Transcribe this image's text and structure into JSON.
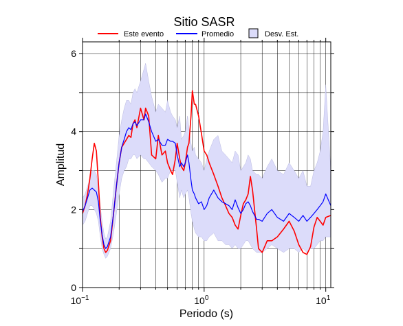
{
  "chart_data": {
    "type": "line",
    "title": "Sitio SASR",
    "xlabel": "Periodo (s)",
    "ylabel": "Amplitud",
    "x_scale": "log",
    "xlim": [
      0.1,
      11
    ],
    "ylim": [
      0,
      6.3
    ],
    "x_ticks": [
      {
        "value": 0.1,
        "base": "10",
        "exp": "−1"
      },
      {
        "value": 1,
        "base": "10",
        "exp": "0"
      },
      {
        "value": 10,
        "base": "10",
        "exp": "1"
      }
    ],
    "y_ticks": [
      0,
      2,
      4,
      6
    ],
    "grid": true,
    "legend_position": "top",
    "legend": {
      "event": "Este evento",
      "mean": "Promedio",
      "band": "Desv. Est."
    },
    "colors": {
      "event": "#ff0000",
      "mean": "#0000ff",
      "band_fill": "#dcdcfa",
      "band_stroke": "#9999cc"
    },
    "series": [
      {
        "name": "Este evento",
        "x": [
          0.1,
          0.105,
          0.11,
          0.115,
          0.12,
          0.125,
          0.13,
          0.135,
          0.14,
          0.145,
          0.15,
          0.155,
          0.16,
          0.17,
          0.18,
          0.19,
          0.2,
          0.21,
          0.22,
          0.23,
          0.24,
          0.25,
          0.26,
          0.27,
          0.28,
          0.3,
          0.32,
          0.33,
          0.35,
          0.37,
          0.4,
          0.42,
          0.45,
          0.48,
          0.5,
          0.53,
          0.55,
          0.58,
          0.6,
          0.63,
          0.65,
          0.68,
          0.7,
          0.73,
          0.75,
          0.78,
          0.8,
          0.83,
          0.85,
          0.9,
          0.95,
          1.0,
          1.05,
          1.1,
          1.2,
          1.3,
          1.4,
          1.5,
          1.6,
          1.7,
          1.8,
          1.9,
          2.0,
          2.1,
          2.2,
          2.3,
          2.4,
          2.5,
          2.7,
          2.8,
          3.0,
          3.3,
          3.6,
          4.0,
          4.5,
          5.0,
          5.5,
          6.0,
          6.5,
          7.0,
          7.5,
          8.0,
          8.5,
          9.0,
          9.5,
          10.0,
          11.0
        ],
        "y": [
          1.9,
          2.1,
          2.4,
          2.8,
          3.3,
          3.7,
          3.5,
          2.7,
          1.8,
          1.3,
          1.0,
          0.9,
          0.95,
          1.2,
          1.9,
          2.6,
          3.2,
          3.6,
          3.7,
          3.8,
          3.9,
          3.85,
          4.2,
          4.3,
          4.1,
          4.6,
          4.3,
          4.6,
          4.4,
          3.4,
          3.3,
          3.9,
          3.4,
          3.5,
          3.2,
          3.0,
          2.9,
          3.3,
          3.7,
          3.3,
          3.1,
          3.0,
          3.2,
          3.6,
          3.7,
          4.4,
          5.05,
          4.7,
          4.7,
          4.4,
          3.95,
          3.5,
          3.4,
          3.2,
          2.9,
          2.6,
          2.3,
          2.1,
          1.9,
          1.8,
          1.6,
          1.5,
          1.85,
          2.15,
          2.25,
          2.4,
          2.85,
          2.5,
          1.5,
          1.0,
          0.9,
          1.2,
          1.2,
          1.3,
          1.5,
          1.7,
          1.45,
          1.1,
          0.9,
          0.85,
          1.05,
          1.55,
          1.8,
          1.7,
          1.6,
          1.8,
          1.85
        ]
      },
      {
        "name": "Promedio",
        "x": [
          0.1,
          0.105,
          0.11,
          0.115,
          0.12,
          0.125,
          0.13,
          0.135,
          0.14,
          0.145,
          0.15,
          0.155,
          0.16,
          0.17,
          0.18,
          0.19,
          0.2,
          0.21,
          0.22,
          0.23,
          0.24,
          0.25,
          0.26,
          0.27,
          0.28,
          0.3,
          0.32,
          0.33,
          0.35,
          0.37,
          0.4,
          0.42,
          0.45,
          0.48,
          0.5,
          0.53,
          0.55,
          0.58,
          0.6,
          0.63,
          0.65,
          0.68,
          0.7,
          0.73,
          0.75,
          0.78,
          0.8,
          0.83,
          0.85,
          0.9,
          0.95,
          1.0,
          1.05,
          1.1,
          1.2,
          1.3,
          1.4,
          1.5,
          1.6,
          1.7,
          1.8,
          1.9,
          2.0,
          2.1,
          2.2,
          2.3,
          2.4,
          2.5,
          2.7,
          2.8,
          3.0,
          3.3,
          3.6,
          4.0,
          4.5,
          5.0,
          5.5,
          6.0,
          6.5,
          7.0,
          7.5,
          8.0,
          8.5,
          9.0,
          9.5,
          10.0,
          11.0
        ],
        "y": [
          1.95,
          2.1,
          2.3,
          2.5,
          2.55,
          2.5,
          2.45,
          2.2,
          1.7,
          1.35,
          1.1,
          1.0,
          1.05,
          1.3,
          1.9,
          2.6,
          3.2,
          3.6,
          3.8,
          4.0,
          4.1,
          4.05,
          4.2,
          4.25,
          4.15,
          4.3,
          4.3,
          4.45,
          4.25,
          4.0,
          3.75,
          3.8,
          3.65,
          3.65,
          3.8,
          3.75,
          3.75,
          3.7,
          3.4,
          3.1,
          3.2,
          3.1,
          3.2,
          3.4,
          3.2,
          2.75,
          2.5,
          2.4,
          2.3,
          2.15,
          2.2,
          2.0,
          2.1,
          2.3,
          2.5,
          2.3,
          2.2,
          2.15,
          2.1,
          2.0,
          2.25,
          2.05,
          1.9,
          2.0,
          2.15,
          2.2,
          2.1,
          1.95,
          1.75,
          1.75,
          1.7,
          1.9,
          2.0,
          1.8,
          1.7,
          1.9,
          1.8,
          1.7,
          1.85,
          1.7,
          1.8,
          1.9,
          2.0,
          2.1,
          2.2,
          2.4,
          2.1
        ]
      }
    ],
    "band": {
      "name": "Desv. Est.",
      "x": [
        0.1,
        0.105,
        0.11,
        0.115,
        0.12,
        0.125,
        0.13,
        0.135,
        0.14,
        0.145,
        0.15,
        0.155,
        0.16,
        0.17,
        0.18,
        0.19,
        0.2,
        0.21,
        0.22,
        0.23,
        0.24,
        0.25,
        0.26,
        0.27,
        0.28,
        0.3,
        0.32,
        0.33,
        0.35,
        0.37,
        0.4,
        0.42,
        0.45,
        0.48,
        0.5,
        0.53,
        0.55,
        0.58,
        0.6,
        0.63,
        0.65,
        0.68,
        0.7,
        0.73,
        0.75,
        0.78,
        0.8,
        0.83,
        0.85,
        0.9,
        0.95,
        1.0,
        1.05,
        1.1,
        1.2,
        1.3,
        1.4,
        1.5,
        1.6,
        1.7,
        1.8,
        1.9,
        2.0,
        2.1,
        2.2,
        2.3,
        2.4,
        2.5,
        2.7,
        2.8,
        3.0,
        3.3,
        3.6,
        4.0,
        4.5,
        5.0,
        5.5,
        6.0,
        6.5,
        7.0,
        7.5,
        8.0,
        8.5,
        9.0,
        9.5,
        10.0,
        11.0
      ],
      "upper": [
        2.3,
        2.4,
        2.6,
        2.8,
        3.0,
        3.0,
        2.9,
        2.6,
        2.1,
        1.7,
        1.4,
        1.25,
        1.3,
        1.7,
        2.5,
        3.2,
        3.9,
        4.3,
        4.6,
        4.8,
        4.8,
        4.7,
        5.0,
        5.1,
        5.0,
        5.3,
        5.6,
        5.75,
        5.3,
        4.9,
        4.5,
        4.7,
        4.6,
        4.5,
        4.8,
        4.5,
        4.4,
        4.3,
        4.1,
        4.4,
        3.8,
        3.9,
        4.0,
        4.4,
        4.1,
        3.7,
        3.5,
        3.6,
        3.4,
        3.3,
        3.2,
        3.0,
        3.3,
        3.5,
        3.8,
        3.9,
        3.5,
        3.4,
        3.3,
        3.2,
        3.5,
        3.4,
        3.0,
        3.1,
        3.2,
        3.4,
        3.3,
        3.0,
        2.9,
        2.9,
        2.8,
        3.1,
        3.3,
        3.0,
        2.9,
        3.2,
        3.0,
        2.8,
        3.0,
        2.6,
        2.6,
        3.0,
        3.2,
        3.5,
        4.0,
        5.2,
        3.0
      ],
      "lower": [
        1.6,
        1.7,
        1.9,
        2.1,
        2.1,
        2.0,
        1.9,
        1.7,
        1.3,
        1.0,
        0.85,
        0.75,
        0.8,
        1.0,
        1.4,
        1.9,
        2.4,
        2.8,
        3.0,
        3.1,
        3.3,
        3.3,
        3.4,
        3.4,
        3.3,
        3.4,
        3.3,
        3.3,
        3.2,
        3.1,
        3.0,
        2.9,
        2.7,
        2.8,
        2.8,
        3.0,
        3.0,
        3.0,
        2.7,
        2.3,
        2.5,
        2.3,
        2.4,
        2.5,
        2.3,
        1.9,
        1.7,
        1.5,
        1.4,
        1.3,
        1.3,
        1.2,
        1.2,
        1.3,
        1.4,
        1.2,
        1.2,
        1.1,
        1.1,
        1.0,
        1.1,
        1.0,
        1.0,
        1.1,
        1.2,
        1.2,
        1.1,
        1.0,
        0.9,
        0.9,
        0.9,
        1.0,
        1.1,
        1.0,
        0.9,
        1.0,
        1.0,
        0.9,
        1.0,
        0.9,
        1.0,
        1.0,
        1.1,
        1.2,
        1.2,
        1.3,
        1.3
      ]
    }
  }
}
